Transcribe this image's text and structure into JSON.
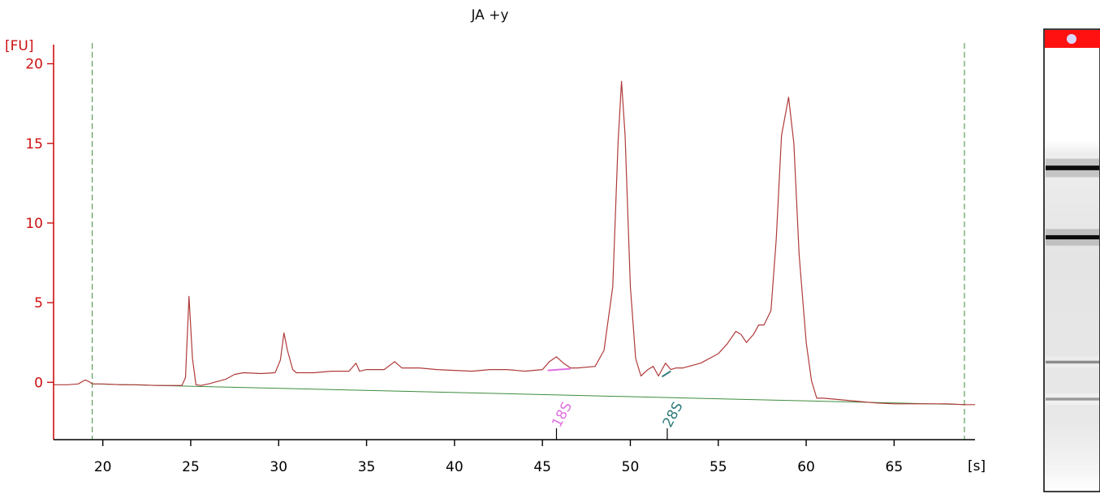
{
  "chart_data": {
    "type": "line",
    "title": "JA +y",
    "y_unit": "[FU]",
    "x_unit": "[s]",
    "xlim": [
      17.2,
      69.6
    ],
    "ylim": [
      -3.6,
      21.2
    ],
    "x_ticks": [
      20,
      25,
      30,
      35,
      40,
      45,
      50,
      55,
      60,
      65
    ],
    "y_ticks": [
      0,
      5,
      10,
      15,
      20
    ],
    "grid": false,
    "markers": [
      19.4,
      69.0
    ],
    "colors": {
      "axis_y": "#cc1111",
      "axis_x": "#000000",
      "trace": "#b03a3a",
      "baseline": "#3c8c3c",
      "marker": "#3c8c3c",
      "label_18S": "#e070e0",
      "label_28S": "#2e7a7a"
    },
    "series": [
      {
        "type": "line",
        "x": [
          17.2,
          18.0,
          18.6,
          19.0,
          19.2,
          19.4,
          20,
          21,
          22,
          23,
          24,
          24.5,
          24.7,
          24.9,
          25.1,
          25.3,
          25.6,
          26,
          27,
          27.5,
          28,
          29,
          29.8,
          30.1,
          30.3,
          30.5,
          30.8,
          31,
          32,
          33,
          34,
          34.4,
          34.6,
          35,
          36,
          36.6,
          37,
          38,
          39,
          40,
          41,
          42,
          43,
          44,
          45,
          45.4,
          45.8,
          46.2,
          46.6,
          47,
          48,
          48.5,
          49,
          49.3,
          49.5,
          49.7,
          50,
          50.3,
          50.6,
          51,
          51.3,
          51.6,
          52,
          52.3,
          52.6,
          53,
          54,
          55,
          55.5,
          56,
          56.3,
          56.6,
          57,
          57.3,
          57.6,
          58,
          58.3,
          58.6,
          59,
          59.3,
          59.6,
          60,
          60.3,
          60.6,
          61,
          62,
          63,
          64,
          65,
          66,
          67,
          68,
          69,
          69.6
        ],
        "y": [
          -0.15,
          -0.15,
          -0.1,
          0.15,
          0.05,
          -0.1,
          -0.1,
          -0.15,
          -0.15,
          -0.2,
          -0.2,
          -0.2,
          0.3,
          5.4,
          1.5,
          -0.15,
          -0.2,
          -0.1,
          0.2,
          0.5,
          0.6,
          0.55,
          0.6,
          1.4,
          3.1,
          2.0,
          0.8,
          0.6,
          0.6,
          0.7,
          0.7,
          1.2,
          0.7,
          0.8,
          0.8,
          1.3,
          0.9,
          0.9,
          0.8,
          0.75,
          0.7,
          0.8,
          0.8,
          0.7,
          0.8,
          1.3,
          1.6,
          1.2,
          0.9,
          0.9,
          1.0,
          2.0,
          6.0,
          15.0,
          18.9,
          15.5,
          6.0,
          1.5,
          0.4,
          0.8,
          1.0,
          0.4,
          1.2,
          0.8,
          0.9,
          0.9,
          1.2,
          1.8,
          2.4,
          3.2,
          3.0,
          2.5,
          3.0,
          3.6,
          3.6,
          4.5,
          9.0,
          15.5,
          17.9,
          15.0,
          8.0,
          2.5,
          0.1,
          -1.0,
          -1.0,
          -1.1,
          -1.2,
          -1.3,
          -1.35,
          -1.35,
          -1.35,
          -1.35,
          -1.4,
          -1.4
        ]
      },
      {
        "type": "baseline",
        "x": [
          19.4,
          69.0
        ],
        "y": [
          -0.1,
          -1.4
        ]
      }
    ],
    "annotations": [
      {
        "label": "18S",
        "x": 45.8,
        "seg_x": [
          45.3,
          46.6
        ],
        "seg_y": [
          0.75,
          0.85
        ]
      },
      {
        "label": "28S",
        "x": 52.1,
        "seg_x": [
          51.8,
          52.3
        ],
        "seg_y": [
          0.35,
          0.7
        ]
      }
    ]
  },
  "gel_lane": {
    "header_color": "#ff1111",
    "bands": [
      {
        "pos": 0.3,
        "intensity": 0.95,
        "width": 0.01
      },
      {
        "pos": 0.45,
        "intensity": 0.95,
        "width": 0.009
      },
      {
        "pos": 0.72,
        "intensity": 0.45,
        "width": 0.006
      },
      {
        "pos": 0.8,
        "intensity": 0.4,
        "width": 0.006
      }
    ]
  }
}
